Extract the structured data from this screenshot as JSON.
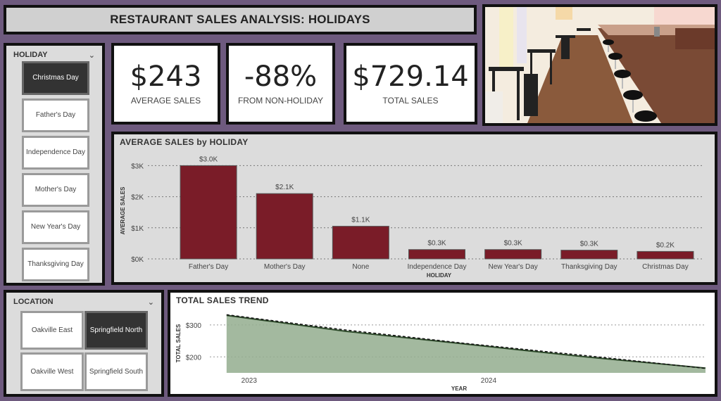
{
  "header": {
    "title": "RESTAURANT SALES ANALYSIS: HOLIDAYS"
  },
  "holiday_slicer": {
    "label": "HOLIDAY",
    "items": [
      {
        "label": "Christmas Day",
        "selected": true
      },
      {
        "label": "Father's Day",
        "selected": false
      },
      {
        "label": "Independence Day",
        "selected": false
      },
      {
        "label": "Mother's Day",
        "selected": false
      },
      {
        "label": "New Year's Day",
        "selected": false
      },
      {
        "label": "Thanksgiving Day",
        "selected": false
      }
    ]
  },
  "location_slicer": {
    "label": "LOCATION",
    "items": [
      {
        "label": "Oakville East",
        "selected": false
      },
      {
        "label": "Springfield North",
        "selected": true
      },
      {
        "label": "Oakville West",
        "selected": false
      },
      {
        "label": "Springfield South",
        "selected": false
      }
    ]
  },
  "kpis": {
    "avg": {
      "value": "$243",
      "label": "AVERAGE SALES"
    },
    "pct": {
      "value": "-88%",
      "label": "FROM NON-HOLIDAY"
    },
    "total": {
      "value": "$729.14",
      "label": "TOTAL SALES"
    }
  },
  "colors": {
    "bar": "#7a1c28",
    "area": "#93ad8e",
    "line": "#2d4a2a",
    "selected": "#333333"
  },
  "chart_data": [
    {
      "type": "bar",
      "title": "AVERAGE SALES by HOLIDAY",
      "xlabel": "HOLIDAY",
      "ylabel": "AVERAGE SALES",
      "categories": [
        "Father's Day",
        "Mother's Day",
        "None",
        "Independence Day",
        "New Year's Day",
        "Thanksgiving Day",
        "Christmas Day"
      ],
      "values": [
        3.0,
        2.1,
        1.05,
        0.3,
        0.3,
        0.28,
        0.24
      ],
      "data_labels": [
        "$3.0K",
        "$2.1K",
        "$1.1K",
        "$0.3K",
        "$0.3K",
        "$0.3K",
        "$0.2K"
      ],
      "yticks": [
        0,
        1,
        2,
        3
      ],
      "ytick_labels": [
        "$0K",
        "$1K",
        "$2K",
        "$3K"
      ],
      "ylim": [
        0,
        3.1
      ],
      "grid": true
    },
    {
      "type": "area",
      "title": "TOTAL SALES TREND",
      "xlabel": "YEAR",
      "ylabel": "TOTAL SALES",
      "x": [
        2023.0,
        2023.5,
        2024.0,
        2024.5,
        2025.0
      ],
      "y": [
        330,
        280,
        240,
        200,
        165
      ],
      "trend": [
        332,
        284,
        242,
        204,
        164
      ],
      "xticks": [
        2023,
        2024
      ],
      "xtick_labels": [
        "2023",
        "2024"
      ],
      "yticks": [
        200,
        300
      ],
      "ytick_labels": [
        "$200",
        "$300"
      ],
      "xlim": [
        2022.93,
        2025.0
      ],
      "ylim": [
        150,
        335
      ],
      "grid": true
    }
  ]
}
